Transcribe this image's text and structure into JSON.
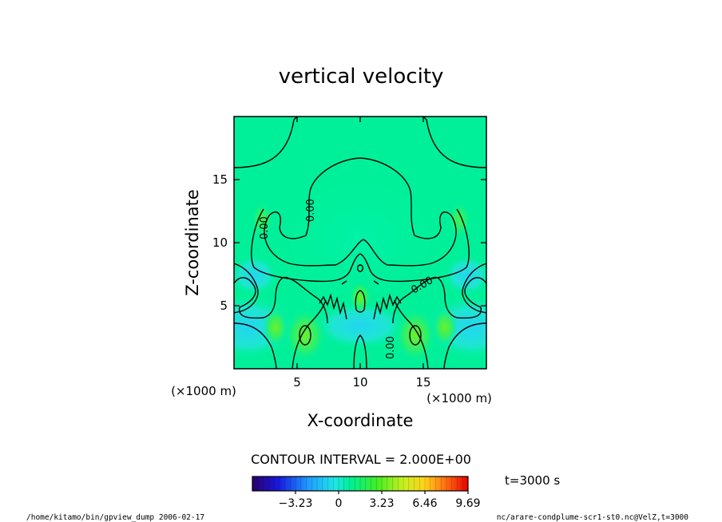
{
  "chart_data": {
    "type": "heatmap",
    "title": "vertical velocity",
    "xlabel": "X-coordinate",
    "ylabel": "Z-coordinate",
    "x_unit": "(×1000 m)",
    "y_unit": "(×1000 m)",
    "xlim": [
      0,
      20
    ],
    "ylim": [
      0,
      20
    ],
    "x_ticks": [
      5,
      10,
      15
    ],
    "y_ticks": [
      5,
      10,
      15
    ],
    "x_tick_labels": [
      "5",
      "10",
      "15"
    ],
    "y_tick_labels": [
      "5",
      "10",
      "15"
    ],
    "contour_labels": [
      "0.00",
      "0.00",
      "0.00",
      "0.00"
    ],
    "contour_interval_text": "CONTOUR INTERVAL = 2.000E+00",
    "colorbar": {
      "min": -6.46,
      "max": 9.69,
      "tick_values": [
        -3.23,
        0,
        3.23,
        6.46,
        9.69
      ],
      "tick_labels": [
        "−3.23",
        "0",
        "3.23",
        "6.46",
        "9.69"
      ]
    },
    "time_text": "t=3000 s",
    "footer_left": "/home/kitamo/bin/gpview_dump  2006-02-17",
    "footer_right": "nc/arare-condplume-scr1-st0.nc@VelZ,t=3000"
  }
}
